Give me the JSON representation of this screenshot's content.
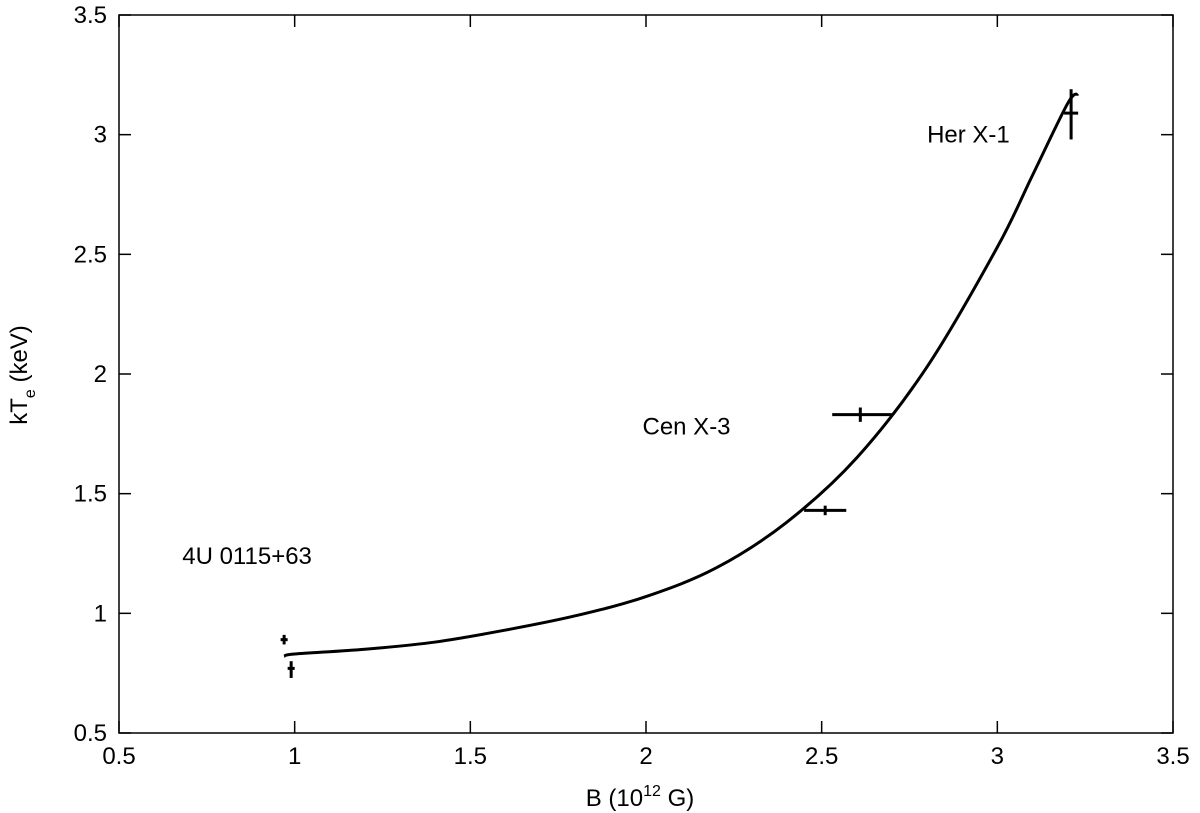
{
  "chart_data": {
    "type": "scatter",
    "xlabel": {
      "base": "B (10",
      "sup": "12",
      "rest": " G)"
    },
    "ylabel": {
      "base": "kT",
      "sub": "e",
      "rest": " (keV)"
    },
    "xlim": [
      0.5,
      3.5
    ],
    "ylim": [
      0.5,
      3.5
    ],
    "xticks": [
      "0.5",
      "1",
      "1.5",
      "2",
      "2.5",
      "3",
      "3.5"
    ],
    "yticks": [
      "0.5",
      "1",
      "1.5",
      "2",
      "2.5",
      "3",
      "3.5"
    ],
    "grid": false,
    "points": [
      {
        "x": 0.97,
        "y": 0.89,
        "xerr": [
          0.01,
          0.01
        ],
        "yerr": [
          0.02,
          0.02
        ]
      },
      {
        "x": 0.99,
        "y": 0.77,
        "xerr": [
          0.01,
          0.01
        ],
        "yerr": [
          0.04,
          0.03
        ]
      },
      {
        "x": 2.51,
        "y": 1.43,
        "xerr": [
          0.06,
          0.06
        ],
        "yerr": [
          0.02,
          0.02
        ]
      },
      {
        "x": 2.61,
        "y": 1.83,
        "xerr": [
          0.08,
          0.09
        ],
        "yerr": [
          0.03,
          0.03
        ]
      },
      {
        "x": 3.21,
        "y": 3.09,
        "xerr": [
          0.02,
          0.02
        ],
        "yerr": [
          0.11,
          0.1
        ]
      }
    ],
    "fit_curve": {
      "x": [
        0.97,
        1.0,
        1.2,
        1.4,
        1.6,
        1.8,
        2.0,
        2.2,
        2.4,
        2.6,
        2.8,
        3.0,
        3.1,
        3.2,
        3.23
      ],
      "y": [
        0.82,
        0.83,
        0.85,
        0.88,
        0.93,
        0.99,
        1.07,
        1.19,
        1.38,
        1.65,
        2.03,
        2.53,
        2.83,
        3.13,
        3.17
      ]
    },
    "annotations": [
      {
        "text": "4U 0115+63",
        "x": 0.68,
        "y": 1.24
      },
      {
        "text": "Cen X-3",
        "x": 1.99,
        "y": 1.78
      },
      {
        "text": "Her X-1",
        "x": 2.8,
        "y": 3.0
      }
    ]
  }
}
